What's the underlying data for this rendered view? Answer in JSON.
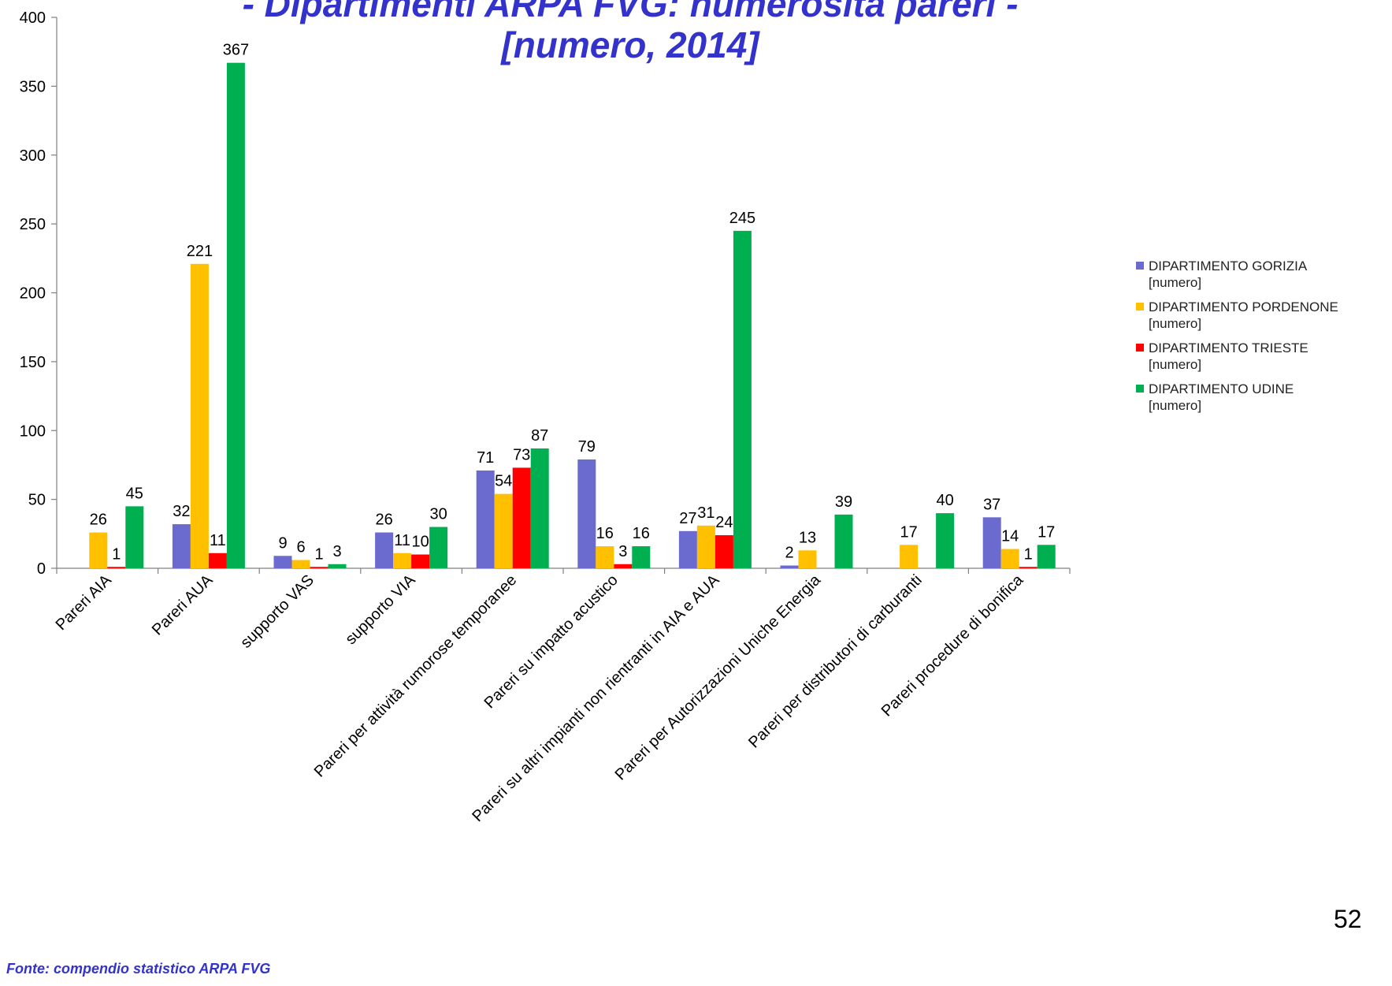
{
  "title": {
    "line1": "-   Dipartimenti ARPA FVG: numerosità pareri    -",
    "line2": "[numero, 2014]"
  },
  "chart_data": {
    "type": "bar",
    "ylim": [
      0,
      400
    ],
    "yticks": [
      0,
      50,
      100,
      150,
      200,
      250,
      300,
      350,
      400
    ],
    "grid": false,
    "legend_position": "right",
    "categories": [
      "Pareri AIA",
      "Pareri AUA",
      "supporto  VAS",
      "supporto VIA",
      "Pareri per attività rumorose temporanee",
      "Pareri su impatto acustico",
      "Pareri su altri impianti non rientranti in AIA e AUA",
      "Pareri per Autorizzazioni Uniche Energia",
      "Pareri per distributori di carburanti",
      "Pareri procedure di bonifica"
    ],
    "series": [
      {
        "name": "DIPARTIMENTO GORIZIA",
        "unit": "[numero]",
        "color": "#6b6bcf",
        "values": [
          null,
          32,
          9,
          26,
          71,
          79,
          27,
          2,
          null,
          37
        ]
      },
      {
        "name": "DIPARTIMENTO PORDENONE",
        "unit": "[numero]",
        "color": "#ffc000",
        "values": [
          26,
          221,
          6,
          11,
          54,
          16,
          31,
          13,
          17,
          14
        ]
      },
      {
        "name": "DIPARTIMENTO TRIESTE",
        "unit": "[numero]",
        "color": "#ff0000",
        "values": [
          1,
          11,
          1,
          10,
          73,
          3,
          24,
          null,
          null,
          1
        ]
      },
      {
        "name": "DIPARTIMENTO UDINE",
        "unit": "[numero]",
        "color": "#00b050",
        "values": [
          45,
          367,
          3,
          30,
          87,
          16,
          245,
          39,
          40,
          17
        ]
      }
    ]
  },
  "footer": {
    "source": "Fonte: compendio statistico ARPA FVG",
    "page_number": "52"
  }
}
